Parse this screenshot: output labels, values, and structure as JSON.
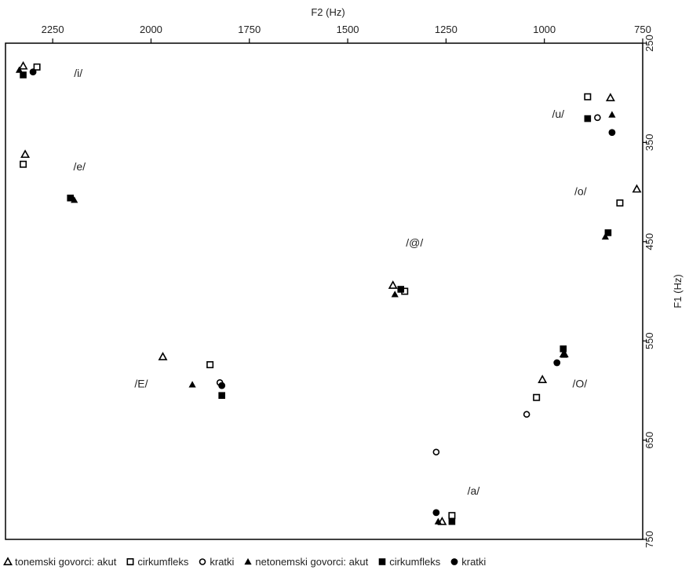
{
  "chart_data": {
    "type": "scatter",
    "title": "",
    "xlabel": "F2 (Hz)",
    "ylabel": "F1 (Hz)",
    "xlim": [
      2370,
      750
    ],
    "ylim": [
      250,
      750
    ],
    "x_reversed": true,
    "y_reversed": true,
    "xticks": [
      "2250",
      "2000",
      "1750",
      "1500",
      "1250",
      "1000",
      "750"
    ],
    "yticks": [
      "250",
      "350",
      "450",
      "550",
      "650",
      "750"
    ],
    "xtick_values": [
      2250,
      2000,
      1750,
      1500,
      1250,
      1000,
      750
    ],
    "ytick_values": [
      250,
      350,
      450,
      550,
      650,
      750
    ],
    "x_axis_position": "top",
    "y_axis_position": "right",
    "legend_position": "bottom",
    "grid": false,
    "series": [
      {
        "name": "tonemski govorci: akut",
        "marker": "triangle-open",
        "x": [
          2325,
          2320,
          1970,
          1385,
          1005,
          950,
          1260,
          832,
          765
        ],
        "y": [
          273,
          362,
          566,
          494,
          589,
          563,
          732,
          305,
          397
        ]
      },
      {
        "name": "cirkumfleks",
        "marker": "square-open",
        "x": [
          2290,
          2325,
          1850,
          1355,
          1020,
          1235,
          890,
          808
        ],
        "y": [
          274,
          372,
          574,
          500,
          607,
          726,
          304,
          411
        ]
      },
      {
        "name": "kratki",
        "marker": "circle-open",
        "x": [
          1825,
          1275,
          1045,
          865
        ],
        "y": [
          592,
          662,
          624,
          325
        ]
      },
      {
        "name": "netonemski govorci: akut",
        "marker": "triangle-filled",
        "x": [
          2335,
          2195,
          1895,
          1380,
          1270,
          950,
          845,
          828
        ],
        "y": [
          277,
          408,
          594,
          503,
          732,
          564,
          445,
          322
        ]
      },
      {
        "name": "cirkumfleks",
        "marker": "square-filled",
        "x": [
          2325,
          2205,
          1820,
          1365,
          1235,
          952,
          838,
          890
        ],
        "y": [
          282,
          406,
          605,
          498,
          732,
          558,
          441,
          326
        ]
      },
      {
        "name": "kratki",
        "marker": "circle-filled",
        "x": [
          2300,
          1820,
          1275,
          968,
          828
        ],
        "y": [
          279,
          595,
          723,
          572,
          340
        ]
      }
    ],
    "annotations": [
      {
        "text": "/i/",
        "x": 2185,
        "y": 284
      },
      {
        "text": "/e/",
        "x": 2182,
        "y": 378
      },
      {
        "text": "/E/",
        "x": 2025,
        "y": 597
      },
      {
        "text": "/@/",
        "x": 1330,
        "y": 455
      },
      {
        "text": "/a/",
        "x": 1180,
        "y": 705
      },
      {
        "text": "/u/",
        "x": 965,
        "y": 325
      },
      {
        "text": "/o/",
        "x": 908,
        "y": 403
      },
      {
        "text": "/O/",
        "x": 910,
        "y": 597
      }
    ]
  }
}
